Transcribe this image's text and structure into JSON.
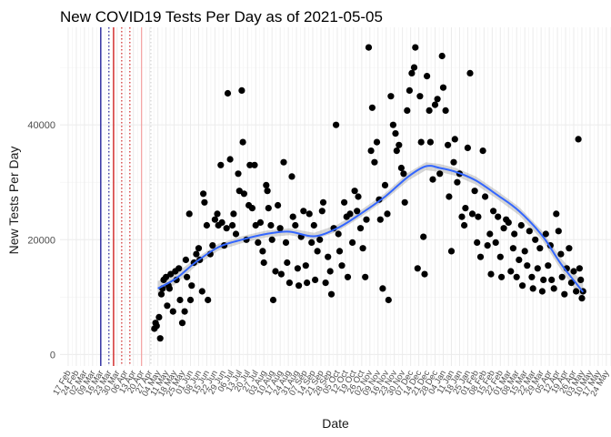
{
  "chart_data": {
    "type": "scatter",
    "title": "New COVID19 Tests Per Day as of 2021-05-05",
    "xlabel": "Date",
    "ylabel": "New Tests Per Day",
    "ylim": [
      -2000,
      57000
    ],
    "xlim": [
      "2020-02-10",
      "2021-05-28"
    ],
    "yticks": [
      0,
      20000,
      40000
    ],
    "ytick_labels": [
      "0",
      "20000",
      "40000"
    ],
    "xtick_dates": [
      "2020-02-17",
      "2020-02-24",
      "2020-03-02",
      "2020-03-09",
      "2020-03-16",
      "2020-03-23",
      "2020-03-30",
      "2020-04-06",
      "2020-04-13",
      "2020-04-20",
      "2020-04-27",
      "2020-05-04",
      "2020-05-11",
      "2020-05-18",
      "2020-05-25",
      "2020-06-01",
      "2020-06-08",
      "2020-06-15",
      "2020-06-22",
      "2020-06-29",
      "2020-07-06",
      "2020-07-13",
      "2020-07-20",
      "2020-07-27",
      "2020-08-03",
      "2020-08-10",
      "2020-08-17",
      "2020-08-24",
      "2020-08-31",
      "2020-09-07",
      "2020-09-14",
      "2020-09-21",
      "2020-09-28",
      "2020-10-05",
      "2020-10-12",
      "2020-10-19",
      "2020-10-26",
      "2020-11-02",
      "2020-11-09",
      "2020-11-16",
      "2020-11-23",
      "2020-11-30",
      "2020-12-07",
      "2020-12-14",
      "2020-12-21",
      "2020-12-28",
      "2021-01-04",
      "2021-01-11",
      "2021-01-18",
      "2021-01-25",
      "2021-02-01",
      "2021-02-08",
      "2021-02-15",
      "2021-02-22",
      "2021-03-01",
      "2021-03-08",
      "2021-03-15",
      "2021-03-22",
      "2021-03-29",
      "2021-04-05",
      "2021-04-12",
      "2021-04-19",
      "2021-04-26",
      "2021-05-03",
      "2021-05-10",
      "2021-05-17",
      "2021-05-24"
    ],
    "xtick_labels": [
      "17 Feb",
      "24 Feb",
      "02 Mar",
      "09 Mar",
      "16 Mar",
      "23 Mar",
      "30 Mar",
      "06 Apr",
      "13 Apr",
      "20 Apr",
      "27 Apr",
      "04 May",
      "11 May",
      "18 May",
      "25 May",
      "01 Jun",
      "08 Jun",
      "15 Jun",
      "22 Jun",
      "29 Jun",
      "06 Jul",
      "13 Jul",
      "20 Jul",
      "27 Jul",
      "03 Aug",
      "10 Aug",
      "17 Aug",
      "24 Aug",
      "31 Aug",
      "07 Sep",
      "14 Sep",
      "21 Sep",
      "28 Sep",
      "05 Oct",
      "12 Oct",
      "19 Oct",
      "26 Oct",
      "02 Nov",
      "09 Nov",
      "16 Nov",
      "23 Nov",
      "30 Nov",
      "07 Dec",
      "14 Dec",
      "21 Dec",
      "28 Dec",
      "04 Jan",
      "11 Jan",
      "18 Jan",
      "25 Jan",
      "01 Feb",
      "08 Feb",
      "15 Feb",
      "22 Feb",
      "01 Mar",
      "08 Mar",
      "15 Mar",
      "22 Mar",
      "29 Mar",
      "05 Apr",
      "12 Apr",
      "19 Apr",
      "26 Apr",
      "03 May",
      "10 May",
      "17 May",
      "24 May"
    ],
    "vlines": [
      {
        "date": "2020-03-16",
        "color": "#00008b",
        "style": "solid"
      },
      {
        "date": "2020-03-23",
        "color": "#00008b",
        "style": "dotted"
      },
      {
        "date": "2020-03-27",
        "color": "#cc0000",
        "style": "solid"
      },
      {
        "date": "2020-04-03",
        "color": "#cc0000",
        "style": "dotted"
      },
      {
        "date": "2020-04-10",
        "color": "#cc0000",
        "style": "dotted"
      },
      {
        "date": "2020-04-20",
        "color": "#f4a0a0",
        "style": "solid"
      },
      {
        "date": "2020-04-28",
        "color": "#cccccc",
        "style": "dotted"
      }
    ],
    "grid": true,
    "colors": {
      "points": "#000000",
      "smooth_line": "#3366ff",
      "smooth_ribbon": "#999999"
    },
    "smooth": {
      "x": [
        "2020-05-04",
        "2020-05-20",
        "2020-06-05",
        "2020-06-25",
        "2020-07-15",
        "2020-08-05",
        "2020-08-25",
        "2020-09-15",
        "2020-10-05",
        "2020-10-25",
        "2020-11-15",
        "2020-12-05",
        "2020-12-20",
        "2021-01-01",
        "2021-01-15",
        "2021-02-01",
        "2021-02-20",
        "2021-03-10",
        "2021-03-30",
        "2021-04-15",
        "2021-05-04"
      ],
      "y": [
        11500,
        13300,
        16000,
        18700,
        20000,
        21000,
        21400,
        20600,
        22000,
        24500,
        27500,
        31000,
        32800,
        32500,
        31800,
        30300,
        27700,
        25000,
        20700,
        15800,
        10900
      ],
      "ci": [
        1300,
        900,
        700,
        600,
        600,
        600,
        600,
        600,
        600,
        600,
        600,
        700,
        700,
        700,
        700,
        700,
        700,
        700,
        800,
        1000,
        1600
      ]
    },
    "points": [
      {
        "x": "2020-05-01",
        "y": 4500
      },
      {
        "x": "2020-05-02",
        "y": 5500
      },
      {
        "x": "2020-05-03",
        "y": 5000
      },
      {
        "x": "2020-05-05",
        "y": 6500
      },
      {
        "x": "2020-05-06",
        "y": 2800
      },
      {
        "x": "2020-05-07",
        "y": 10500
      },
      {
        "x": "2020-05-08",
        "y": 11500
      },
      {
        "x": "2020-05-09",
        "y": 13000
      },
      {
        "x": "2020-05-11",
        "y": 13500
      },
      {
        "x": "2020-05-12",
        "y": 8500
      },
      {
        "x": "2020-05-13",
        "y": 12000
      },
      {
        "x": "2020-05-14",
        "y": 11500
      },
      {
        "x": "2020-05-15",
        "y": 14000
      },
      {
        "x": "2020-05-17",
        "y": 7500
      },
      {
        "x": "2020-05-19",
        "y": 14500
      },
      {
        "x": "2020-05-20",
        "y": 13000
      },
      {
        "x": "2020-05-22",
        "y": 15000
      },
      {
        "x": "2020-05-23",
        "y": 9500
      },
      {
        "x": "2020-05-25",
        "y": 5500
      },
      {
        "x": "2020-05-27",
        "y": 7500
      },
      {
        "x": "2020-05-28",
        "y": 16500
      },
      {
        "x": "2020-05-29",
        "y": 13500
      },
      {
        "x": "2020-05-31",
        "y": 24500
      },
      {
        "x": "2020-06-01",
        "y": 9500
      },
      {
        "x": "2020-06-02",
        "y": 12000
      },
      {
        "x": "2020-06-04",
        "y": 16000
      },
      {
        "x": "2020-06-06",
        "y": 17500
      },
      {
        "x": "2020-06-08",
        "y": 18500
      },
      {
        "x": "2020-06-09",
        "y": 16500
      },
      {
        "x": "2020-06-11",
        "y": 11000
      },
      {
        "x": "2020-06-12",
        "y": 28000
      },
      {
        "x": "2020-06-13",
        "y": 26500
      },
      {
        "x": "2020-06-15",
        "y": 22500
      },
      {
        "x": "2020-06-16",
        "y": 9500
      },
      {
        "x": "2020-06-18",
        "y": 17500
      },
      {
        "x": "2020-06-20",
        "y": 19000
      },
      {
        "x": "2020-06-22",
        "y": 23500
      },
      {
        "x": "2020-06-24",
        "y": 24500
      },
      {
        "x": "2020-06-25",
        "y": 22500
      },
      {
        "x": "2020-06-27",
        "y": 33000
      },
      {
        "x": "2020-06-28",
        "y": 23000
      },
      {
        "x": "2020-06-30",
        "y": 19000
      },
      {
        "x": "2020-07-02",
        "y": 22000
      },
      {
        "x": "2020-07-03",
        "y": 45500
      },
      {
        "x": "2020-07-05",
        "y": 34000
      },
      {
        "x": "2020-07-07",
        "y": 22500
      },
      {
        "x": "2020-07-08",
        "y": 24500
      },
      {
        "x": "2020-07-10",
        "y": 21000
      },
      {
        "x": "2020-07-12",
        "y": 31500
      },
      {
        "x": "2020-07-13",
        "y": 28500
      },
      {
        "x": "2020-07-15",
        "y": 46000
      },
      {
        "x": "2020-07-16",
        "y": 37000
      },
      {
        "x": "2020-07-17",
        "y": 28000
      },
      {
        "x": "2020-07-19",
        "y": 20000
      },
      {
        "x": "2020-07-21",
        "y": 26000
      },
      {
        "x": "2020-07-22",
        "y": 33000
      },
      {
        "x": "2020-07-24",
        "y": 25500
      },
      {
        "x": "2020-07-26",
        "y": 33000
      },
      {
        "x": "2020-07-27",
        "y": 22500
      },
      {
        "x": "2020-07-29",
        "y": 19500
      },
      {
        "x": "2020-07-31",
        "y": 23000
      },
      {
        "x": "2020-08-02",
        "y": 18000
      },
      {
        "x": "2020-08-03",
        "y": 16000
      },
      {
        "x": "2020-08-05",
        "y": 29500
      },
      {
        "x": "2020-08-06",
        "y": 28500
      },
      {
        "x": "2020-08-07",
        "y": 25500
      },
      {
        "x": "2020-08-09",
        "y": 22500
      },
      {
        "x": "2020-08-10",
        "y": 20000
      },
      {
        "x": "2020-08-11",
        "y": 9500
      },
      {
        "x": "2020-08-13",
        "y": 14500
      },
      {
        "x": "2020-08-15",
        "y": 26000
      },
      {
        "x": "2020-08-17",
        "y": 22000
      },
      {
        "x": "2020-08-18",
        "y": 14000
      },
      {
        "x": "2020-08-20",
        "y": 33500
      },
      {
        "x": "2020-08-22",
        "y": 19500
      },
      {
        "x": "2020-08-23",
        "y": 16000
      },
      {
        "x": "2020-08-25",
        "y": 12500
      },
      {
        "x": "2020-08-27",
        "y": 31000
      },
      {
        "x": "2020-08-28",
        "y": 24000
      },
      {
        "x": "2020-08-30",
        "y": 22500
      },
      {
        "x": "2020-09-01",
        "y": 15000
      },
      {
        "x": "2020-09-02",
        "y": 12000
      },
      {
        "x": "2020-09-04",
        "y": 20500
      },
      {
        "x": "2020-09-06",
        "y": 25000
      },
      {
        "x": "2020-09-08",
        "y": 15500
      },
      {
        "x": "2020-09-09",
        "y": 12500
      },
      {
        "x": "2020-09-11",
        "y": 24500
      },
      {
        "x": "2020-09-13",
        "y": 19500
      },
      {
        "x": "2020-09-15",
        "y": 22500
      },
      {
        "x": "2020-09-16",
        "y": 13000
      },
      {
        "x": "2020-09-18",
        "y": 18000
      },
      {
        "x": "2020-09-20",
        "y": 20000
      },
      {
        "x": "2020-09-22",
        "y": 25000
      },
      {
        "x": "2020-09-23",
        "y": 26500
      },
      {
        "x": "2020-09-25",
        "y": 12500
      },
      {
        "x": "2020-09-27",
        "y": 17000
      },
      {
        "x": "2020-09-29",
        "y": 14500
      },
      {
        "x": "2020-09-30",
        "y": 10500
      },
      {
        "x": "2020-10-02",
        "y": 22000
      },
      {
        "x": "2020-10-04",
        "y": 40000
      },
      {
        "x": "2020-10-06",
        "y": 21000
      },
      {
        "x": "2020-10-07",
        "y": 18000
      },
      {
        "x": "2020-10-09",
        "y": 15500
      },
      {
        "x": "2020-10-11",
        "y": 26500
      },
      {
        "x": "2020-10-13",
        "y": 24000
      },
      {
        "x": "2020-10-14",
        "y": 13500
      },
      {
        "x": "2020-10-16",
        "y": 24500
      },
      {
        "x": "2020-10-18",
        "y": 19500
      },
      {
        "x": "2020-10-20",
        "y": 28500
      },
      {
        "x": "2020-10-22",
        "y": 25000
      },
      {
        "x": "2020-10-23",
        "y": 27500
      },
      {
        "x": "2020-10-25",
        "y": 22000
      },
      {
        "x": "2020-10-27",
        "y": 18500
      },
      {
        "x": "2020-10-29",
        "y": 13500
      },
      {
        "x": "2020-10-30",
        "y": 23500
      },
      {
        "x": "2020-11-01",
        "y": 53500
      },
      {
        "x": "2020-11-03",
        "y": 35500
      },
      {
        "x": "2020-11-04",
        "y": 43000
      },
      {
        "x": "2020-11-06",
        "y": 33500
      },
      {
        "x": "2020-11-08",
        "y": 37000
      },
      {
        "x": "2020-11-10",
        "y": 27000
      },
      {
        "x": "2020-11-11",
        "y": 23500
      },
      {
        "x": "2020-11-13",
        "y": 11500
      },
      {
        "x": "2020-11-15",
        "y": 29500
      },
      {
        "x": "2020-11-17",
        "y": 24500
      },
      {
        "x": "2020-11-18",
        "y": 9500
      },
      {
        "x": "2020-11-20",
        "y": 45000
      },
      {
        "x": "2020-11-22",
        "y": 40000
      },
      {
        "x": "2020-11-24",
        "y": 38500
      },
      {
        "x": "2020-11-25",
        "y": 35500
      },
      {
        "x": "2020-11-27",
        "y": 36500
      },
      {
        "x": "2020-11-29",
        "y": 32500
      },
      {
        "x": "2020-12-01",
        "y": 31500
      },
      {
        "x": "2020-12-02",
        "y": 26500
      },
      {
        "x": "2020-12-04",
        "y": 42500
      },
      {
        "x": "2020-12-06",
        "y": 46000
      },
      {
        "x": "2020-12-08",
        "y": 49000
      },
      {
        "x": "2020-12-10",
        "y": 50000
      },
      {
        "x": "2020-12-11",
        "y": 53500
      },
      {
        "x": "2020-12-13",
        "y": 15000
      },
      {
        "x": "2020-12-15",
        "y": 45000
      },
      {
        "x": "2020-12-16",
        "y": 37000
      },
      {
        "x": "2020-12-18",
        "y": 20500
      },
      {
        "x": "2020-12-19",
        "y": 14000
      },
      {
        "x": "2020-12-21",
        "y": 48500
      },
      {
        "x": "2020-12-23",
        "y": 42500
      },
      {
        "x": "2020-12-24",
        "y": 37000
      },
      {
        "x": "2020-12-26",
        "y": 30500
      },
      {
        "x": "2020-12-28",
        "y": 43500
      },
      {
        "x": "2020-12-30",
        "y": 44500
      },
      {
        "x": "2021-01-01",
        "y": 31500
      },
      {
        "x": "2021-01-03",
        "y": 52000
      },
      {
        "x": "2021-01-04",
        "y": 46500
      },
      {
        "x": "2021-01-06",
        "y": 42500
      },
      {
        "x": "2021-01-08",
        "y": 36500
      },
      {
        "x": "2021-01-09",
        "y": 27500
      },
      {
        "x": "2021-01-11",
        "y": 18000
      },
      {
        "x": "2021-01-13",
        "y": 33500
      },
      {
        "x": "2021-01-14",
        "y": 37500
      },
      {
        "x": "2021-01-16",
        "y": 30000
      },
      {
        "x": "2021-01-18",
        "y": 31500
      },
      {
        "x": "2021-01-20",
        "y": 24000
      },
      {
        "x": "2021-01-22",
        "y": 22500
      },
      {
        "x": "2021-01-23",
        "y": 25500
      },
      {
        "x": "2021-01-25",
        "y": 36000
      },
      {
        "x": "2021-01-27",
        "y": 49000
      },
      {
        "x": "2021-01-29",
        "y": 24500
      },
      {
        "x": "2021-01-31",
        "y": 28500
      },
      {
        "x": "2021-02-02",
        "y": 19500
      },
      {
        "x": "2021-02-03",
        "y": 24000
      },
      {
        "x": "2021-02-05",
        "y": 17000
      },
      {
        "x": "2021-02-07",
        "y": 35500
      },
      {
        "x": "2021-02-09",
        "y": 27500
      },
      {
        "x": "2021-02-11",
        "y": 19000
      },
      {
        "x": "2021-02-13",
        "y": 21000
      },
      {
        "x": "2021-02-14",
        "y": 14000
      },
      {
        "x": "2021-02-16",
        "y": 25000
      },
      {
        "x": "2021-02-18",
        "y": 19500
      },
      {
        "x": "2021-02-20",
        "y": 24000
      },
      {
        "x": "2021-02-22",
        "y": 17000
      },
      {
        "x": "2021-02-23",
        "y": 13500
      },
      {
        "x": "2021-02-25",
        "y": 22000
      },
      {
        "x": "2021-02-27",
        "y": 23500
      },
      {
        "x": "2021-03-01",
        "y": 23000
      },
      {
        "x": "2021-03-03",
        "y": 14500
      },
      {
        "x": "2021-03-05",
        "y": 18500
      },
      {
        "x": "2021-03-06",
        "y": 21000
      },
      {
        "x": "2021-03-08",
        "y": 13500
      },
      {
        "x": "2021-03-10",
        "y": 16500
      },
      {
        "x": "2021-03-12",
        "y": 22500
      },
      {
        "x": "2021-03-13",
        "y": 12000
      },
      {
        "x": "2021-03-15",
        "y": 18000
      },
      {
        "x": "2021-03-17",
        "y": 15500
      },
      {
        "x": "2021-03-19",
        "y": 21500
      },
      {
        "x": "2021-03-21",
        "y": 13500
      },
      {
        "x": "2021-03-22",
        "y": 11500
      },
      {
        "x": "2021-03-24",
        "y": 20000
      },
      {
        "x": "2021-03-26",
        "y": 15000
      },
      {
        "x": "2021-03-28",
        "y": 18500
      },
      {
        "x": "2021-03-30",
        "y": 11000
      },
      {
        "x": "2021-03-31",
        "y": 13000
      },
      {
        "x": "2021-04-02",
        "y": 21000
      },
      {
        "x": "2021-04-04",
        "y": 15500
      },
      {
        "x": "2021-04-06",
        "y": 19000
      },
      {
        "x": "2021-04-07",
        "y": 13000
      },
      {
        "x": "2021-04-09",
        "y": 11500
      },
      {
        "x": "2021-04-11",
        "y": 24500
      },
      {
        "x": "2021-04-13",
        "y": 21500
      },
      {
        "x": "2021-04-15",
        "y": 17500
      },
      {
        "x": "2021-04-16",
        "y": 13500
      },
      {
        "x": "2021-04-18",
        "y": 10500
      },
      {
        "x": "2021-04-20",
        "y": 15000
      },
      {
        "x": "2021-04-22",
        "y": 18500
      },
      {
        "x": "2021-04-24",
        "y": 12500
      },
      {
        "x": "2021-04-26",
        "y": 14500
      },
      {
        "x": "2021-04-28",
        "y": 11000
      },
      {
        "x": "2021-04-30",
        "y": 37500
      },
      {
        "x": "2021-05-01",
        "y": 15000
      },
      {
        "x": "2021-05-02",
        "y": 13000
      },
      {
        "x": "2021-05-03",
        "y": 9800
      },
      {
        "x": "2021-05-04",
        "y": 11000
      }
    ]
  }
}
